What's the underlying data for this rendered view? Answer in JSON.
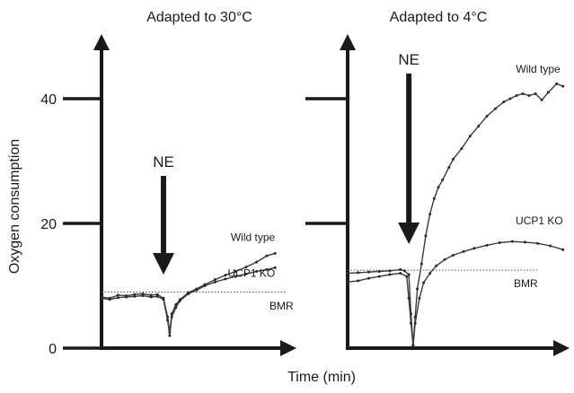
{
  "chart_data": {
    "type": "line",
    "ylabel": "Oxygen consumption",
    "xlabel": "Time (min)",
    "yticks": [
      0,
      20,
      40
    ],
    "ylim": [
      0,
      55
    ],
    "xlim": [
      0,
      100
    ],
    "panels": [
      {
        "title": "Adapted to 30°C",
        "stimulus_label": "NE",
        "stimulus_x": 30,
        "baseline_label": "BMR",
        "baseline_value": 9,
        "series": [
          {
            "name": "Wild type",
            "x": [
              0,
              4,
              8,
              12,
              16,
              20,
              24,
              27,
              30,
              32,
              33,
              34,
              36,
              38,
              42,
              46,
              50,
              55,
              60,
              65,
              70,
              75,
              80,
              84
            ],
            "y": [
              8.2,
              8.0,
              8.5,
              8.4,
              8.6,
              8.7,
              8.5,
              8.6,
              8.0,
              5.0,
              2.5,
              5.5,
              7.0,
              7.8,
              8.9,
              9.5,
              10.2,
              11.0,
              11.7,
              12.3,
              13.0,
              13.8,
              14.8,
              15.2
            ]
          },
          {
            "name": "UCP1 KO",
            "x": [
              0,
              4,
              8,
              12,
              16,
              20,
              24,
              27,
              30,
              32,
              33,
              34,
              36,
              38,
              42,
              46,
              50,
              55,
              60,
              65,
              70,
              75,
              80,
              84
            ],
            "y": [
              8.0,
              7.8,
              8.1,
              8.2,
              8.3,
              8.4,
              8.2,
              8.3,
              7.8,
              4.5,
              2.0,
              5.0,
              6.5,
              7.6,
              8.7,
              9.3,
              10.0,
              10.6,
              11.1,
              11.5,
              11.9,
              12.3,
              12.6,
              12.9
            ]
          }
        ]
      },
      {
        "title": "Adapted to 4°C",
        "stimulus_label": "NE",
        "stimulus_x": 29,
        "baseline_label": "BMR",
        "baseline_value": 12.5,
        "series": [
          {
            "name": "Wild type",
            "x": [
              0,
              5,
              10,
              15,
              20,
              25,
              27,
              29,
              30,
              31,
              32,
              33,
              35,
              37,
              39,
              41,
              43,
              45,
              48,
              50,
              54,
              58,
              62,
              66,
              70,
              74,
              77,
              80,
              83,
              86,
              89,
              92,
              95,
              99,
              102
            ],
            "y": [
              12.0,
              12.1,
              12.2,
              12.3,
              12.4,
              12.6,
              12.4,
              11.8,
              5.5,
              0.4,
              5.0,
              9.5,
              13.5,
              18.0,
              21.5,
              24.0,
              25.8,
              27.0,
              29.0,
              30.3,
              32.0,
              34.0,
              35.6,
              37.2,
              38.4,
              39.5,
              40.0,
              40.5,
              40.8,
              40.5,
              40.8,
              39.8,
              41.0,
              42.4,
              42.0
            ]
          },
          {
            "name": "UCP1 KO",
            "x": [
              0,
              5,
              10,
              15,
              20,
              25,
              28,
              29,
              30,
              31,
              32,
              34,
              36,
              39,
              42,
              46,
              50,
              55,
              60,
              66,
              72,
              78,
              84,
              90,
              96,
              102
            ],
            "y": [
              10.6,
              10.8,
              11.2,
              11.5,
              11.8,
              12.0,
              11.5,
              8.0,
              4.0,
              0.5,
              4.0,
              8.0,
              10.5,
              12.0,
              13.2,
              14.2,
              14.9,
              15.5,
              16.0,
              16.5,
              16.9,
              17.1,
              17.0,
              16.8,
              16.4,
              15.8
            ]
          }
        ]
      }
    ]
  }
}
